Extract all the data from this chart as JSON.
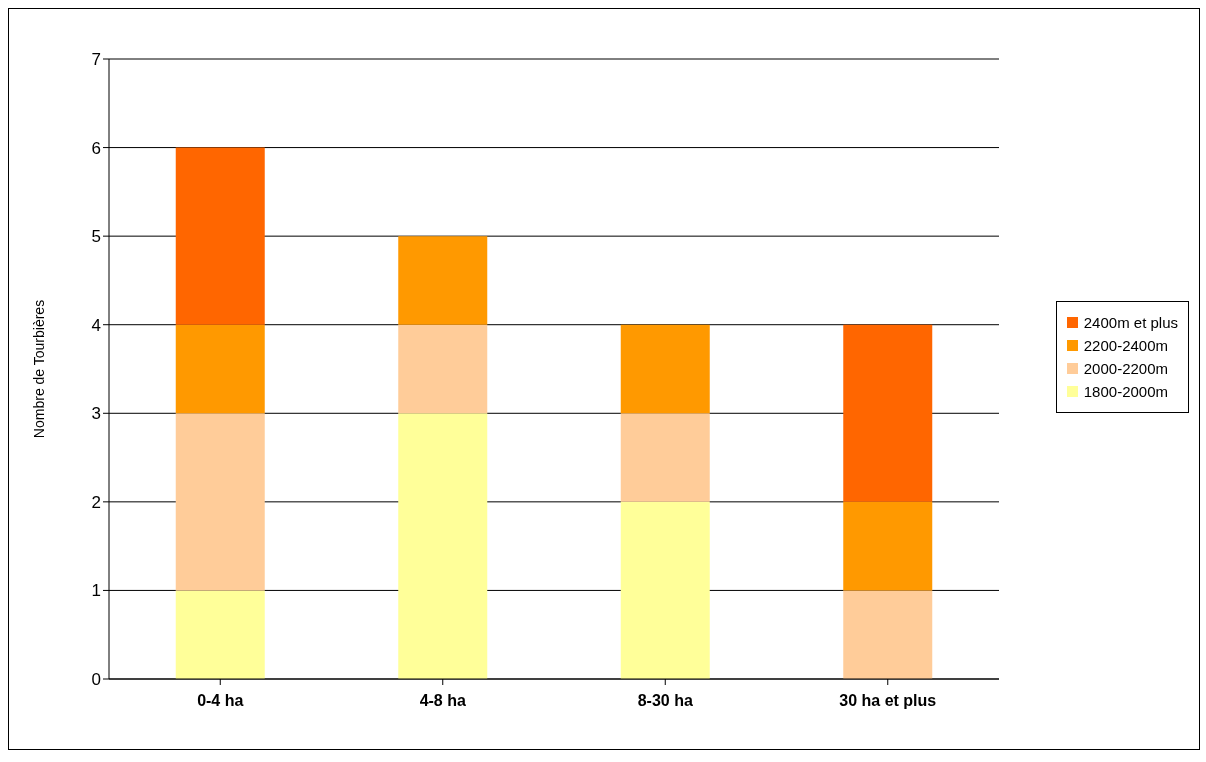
{
  "chart_data": {
    "type": "bar",
    "stacked": true,
    "ylabel": "Nombre de Tourbières",
    "categories": [
      "0-4 ha",
      "4-8 ha",
      "8-30 ha",
      "30 ha et plus"
    ],
    "series": [
      {
        "name": "1800-2000m",
        "color": "#ffff99",
        "values": [
          1,
          3,
          2,
          0
        ]
      },
      {
        "name": "2000-2200m",
        "color": "#ffcc99",
        "values": [
          2,
          1,
          1,
          1
        ]
      },
      {
        "name": "2200-2400m",
        "color": "#ff9900",
        "values": [
          1,
          1,
          1,
          1
        ]
      },
      {
        "name": "2400m et plus",
        "color": "#ff6600",
        "values": [
          2,
          0,
          0,
          2
        ]
      }
    ],
    "ylim": [
      0,
      7
    ],
    "yticks": [
      0,
      1,
      2,
      3,
      4,
      5,
      6,
      7
    ],
    "grid": "y",
    "legend": "right"
  }
}
